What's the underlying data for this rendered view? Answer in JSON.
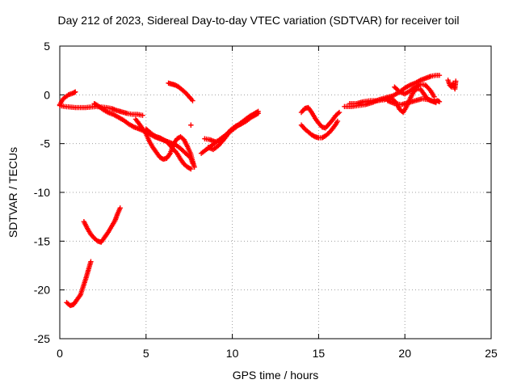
{
  "chart_data": {
    "type": "scatter",
    "title": "Day 212 of 2023, Sidereal Day-to-day VTEC variation (SDTVAR) for receiver toil",
    "xlabel": "GPS time / hours",
    "ylabel": "SDTVAR / TECUs",
    "xlim": [
      0,
      25
    ],
    "ylim": [
      -25,
      5
    ],
    "x_ticks": [
      "0",
      "5",
      "10",
      "15",
      "20",
      "25"
    ],
    "y_ticks": [
      "5",
      "0",
      "-5",
      "-10",
      "-15",
      "-20",
      "-25"
    ],
    "grid": true,
    "marker": "plus",
    "color": "#ff0000",
    "series": [
      {
        "points": [
          [
            0.0,
            -1.0
          ],
          [
            0.1,
            -0.7
          ],
          [
            0.2,
            -0.4
          ],
          [
            0.35,
            -0.2
          ],
          [
            0.5,
            0.0
          ],
          [
            0.65,
            0.1
          ],
          [
            0.8,
            0.2
          ],
          [
            0.9,
            0.3
          ]
        ]
      },
      {
        "points": [
          [
            0.0,
            -1.1
          ],
          [
            0.3,
            -1.2
          ],
          [
            0.6,
            -1.25
          ],
          [
            0.9,
            -1.3
          ],
          [
            1.2,
            -1.3
          ],
          [
            1.5,
            -1.3
          ],
          [
            1.8,
            -1.25
          ],
          [
            2.1,
            -1.2
          ],
          [
            2.4,
            -1.25
          ],
          [
            2.7,
            -1.3
          ],
          [
            3.0,
            -1.4
          ],
          [
            3.3,
            -1.6
          ],
          [
            3.6,
            -1.75
          ],
          [
            3.9,
            -1.9
          ],
          [
            4.2,
            -2.0
          ],
          [
            4.5,
            -2.0
          ],
          [
            4.8,
            -2.1
          ]
        ]
      },
      {
        "points": [
          [
            2.0,
            -0.9
          ],
          [
            2.2,
            -1.1
          ],
          [
            2.5,
            -1.5
          ],
          [
            2.8,
            -1.8
          ],
          [
            3.1,
            -2.0
          ],
          [
            3.4,
            -2.3
          ],
          [
            3.7,
            -2.6
          ],
          [
            4.0,
            -3.0
          ],
          [
            4.3,
            -3.3
          ],
          [
            4.6,
            -3.5
          ],
          [
            4.9,
            -3.7
          ],
          [
            5.2,
            -4.0
          ],
          [
            5.5,
            -4.3
          ],
          [
            5.8,
            -4.5
          ],
          [
            6.1,
            -4.7
          ],
          [
            6.4,
            -4.9
          ],
          [
            6.7,
            -5.1
          ],
          [
            7.0,
            -5.5
          ],
          [
            7.3,
            -6.0
          ],
          [
            7.6,
            -6.5
          ],
          [
            7.7,
            -7.0
          ]
        ]
      },
      {
        "points": [
          [
            4.4,
            -2.5
          ],
          [
            4.7,
            -3.2
          ],
          [
            5.0,
            -4.0
          ],
          [
            5.2,
            -4.8
          ],
          [
            5.4,
            -5.4
          ],
          [
            5.6,
            -5.9
          ],
          [
            5.8,
            -6.4
          ],
          [
            6.0,
            -6.6
          ],
          [
            6.2,
            -6.5
          ],
          [
            6.4,
            -6.0
          ],
          [
            6.6,
            -5.0
          ],
          [
            6.8,
            -4.5
          ],
          [
            7.0,
            -4.3
          ],
          [
            7.2,
            -4.6
          ],
          [
            7.4,
            -5.3
          ],
          [
            7.6,
            -6.1
          ],
          [
            7.7,
            -6.8
          ],
          [
            7.8,
            -7.4
          ]
        ]
      },
      {
        "points": [
          [
            5.0,
            -3.5
          ],
          [
            5.2,
            -3.8
          ],
          [
            5.4,
            -4.1
          ],
          [
            5.6,
            -4.3
          ],
          [
            5.8,
            -4.4
          ],
          [
            6.0,
            -4.6
          ],
          [
            6.2,
            -4.8
          ],
          [
            6.4,
            -5.2
          ],
          [
            6.6,
            -5.6
          ],
          [
            6.8,
            -6.0
          ],
          [
            7.0,
            -6.6
          ],
          [
            7.2,
            -7.1
          ],
          [
            7.4,
            -7.4
          ],
          [
            7.6,
            -7.6
          ]
        ]
      },
      {
        "points": [
          [
            6.3,
            1.2
          ],
          [
            6.5,
            1.1
          ],
          [
            6.7,
            1.0
          ],
          [
            6.9,
            0.8
          ],
          [
            7.1,
            0.5
          ],
          [
            7.3,
            0.2
          ],
          [
            7.5,
            -0.2
          ],
          [
            7.7,
            -0.6
          ]
        ]
      },
      {
        "points": [
          [
            7.6,
            -3.1
          ]
        ]
      },
      {
        "points": [
          [
            8.2,
            -6.0
          ],
          [
            8.5,
            -5.6
          ],
          [
            8.8,
            -5.2
          ],
          [
            9.1,
            -4.8
          ],
          [
            9.4,
            -4.4
          ],
          [
            9.7,
            -4.0
          ],
          [
            10.0,
            -3.6
          ],
          [
            10.3,
            -3.2
          ],
          [
            10.6,
            -2.8
          ],
          [
            10.9,
            -2.4
          ],
          [
            11.2,
            -2.1
          ],
          [
            11.5,
            -1.9
          ]
        ]
      },
      {
        "points": [
          [
            8.4,
            -4.5
          ],
          [
            8.7,
            -4.6
          ],
          [
            9.0,
            -4.8
          ],
          [
            9.3,
            -4.7
          ],
          [
            9.6,
            -4.2
          ],
          [
            9.9,
            -3.6
          ],
          [
            10.2,
            -3.2
          ],
          [
            10.5,
            -3.0
          ],
          [
            10.8,
            -2.7
          ],
          [
            11.1,
            -2.3
          ],
          [
            11.4,
            -2.0
          ]
        ]
      },
      {
        "points": [
          [
            8.6,
            -5.4
          ],
          [
            8.9,
            -5.6
          ],
          [
            9.2,
            -5.2
          ],
          [
            9.5,
            -4.6
          ],
          [
            9.8,
            -3.9
          ],
          [
            10.1,
            -3.4
          ],
          [
            10.4,
            -3.0
          ],
          [
            10.7,
            -2.6
          ],
          [
            11.0,
            -2.2
          ],
          [
            11.3,
            -1.9
          ],
          [
            11.5,
            -1.7
          ]
        ]
      },
      {
        "points": [
          [
            14.0,
            -1.8
          ],
          [
            14.2,
            -1.4
          ],
          [
            14.4,
            -1.3
          ],
          [
            14.6,
            -1.8
          ],
          [
            14.8,
            -2.4
          ],
          [
            15.0,
            -2.9
          ],
          [
            15.2,
            -3.3
          ],
          [
            15.4,
            -3.4
          ],
          [
            15.6,
            -3.0
          ],
          [
            15.8,
            -2.6
          ],
          [
            16.0,
            -2.1
          ],
          [
            16.2,
            -1.8
          ]
        ]
      },
      {
        "points": [
          [
            14.0,
            -3.1
          ],
          [
            14.2,
            -3.5
          ],
          [
            14.4,
            -3.8
          ],
          [
            14.6,
            -4.1
          ],
          [
            14.8,
            -4.3
          ],
          [
            15.0,
            -4.4
          ],
          [
            15.2,
            -4.4
          ],
          [
            15.4,
            -4.2
          ],
          [
            15.6,
            -3.9
          ],
          [
            15.8,
            -3.5
          ],
          [
            16.0,
            -3.0
          ],
          [
            16.1,
            -2.7
          ]
        ]
      },
      {
        "points": [
          [
            16.5,
            -1.2
          ],
          [
            16.9,
            -1.2
          ],
          [
            17.3,
            -1.1
          ],
          [
            17.7,
            -1.0
          ],
          [
            18.1,
            -0.8
          ],
          [
            18.5,
            -0.5
          ],
          [
            18.9,
            -0.3
          ],
          [
            19.3,
            -0.1
          ],
          [
            19.7,
            0.3
          ],
          [
            20.0,
            0.7
          ],
          [
            20.3,
            1.0
          ],
          [
            20.6,
            1.2
          ],
          [
            20.9,
            1.5
          ],
          [
            21.2,
            1.7
          ],
          [
            21.5,
            1.9
          ],
          [
            21.8,
            2.0
          ],
          [
            22.0,
            2.0
          ]
        ]
      },
      {
        "points": [
          [
            16.8,
            -0.9
          ],
          [
            17.2,
            -0.9
          ],
          [
            17.6,
            -0.7
          ],
          [
            18.0,
            -0.6
          ],
          [
            18.4,
            -0.6
          ],
          [
            18.8,
            -0.5
          ],
          [
            19.2,
            -0.3
          ],
          [
            19.5,
            -0.8
          ],
          [
            19.7,
            -1.5
          ],
          [
            19.9,
            -1.8
          ],
          [
            20.1,
            -1.2
          ],
          [
            20.3,
            -0.4
          ],
          [
            20.5,
            0.3
          ],
          [
            20.7,
            0.6
          ],
          [
            20.9,
            0.6
          ],
          [
            21.1,
            0.1
          ],
          [
            21.3,
            -0.4
          ],
          [
            21.5,
            -0.6
          ],
          [
            21.7,
            -0.7
          ],
          [
            21.9,
            -0.6
          ],
          [
            22.0,
            -0.7
          ]
        ]
      },
      {
        "points": [
          [
            19.0,
            -0.6
          ],
          [
            19.4,
            -0.9
          ],
          [
            19.8,
            -1.0
          ],
          [
            20.2,
            -0.8
          ],
          [
            20.6,
            -0.6
          ],
          [
            21.0,
            -0.4
          ],
          [
            21.4,
            -0.5
          ],
          [
            21.8,
            -0.8
          ]
        ]
      },
      {
        "points": [
          [
            19.4,
            0.8
          ],
          [
            19.7,
            0.3
          ],
          [
            20.0,
            0.1
          ],
          [
            20.3,
            0.4
          ],
          [
            20.6,
            0.8
          ],
          [
            20.9,
            1.1
          ],
          [
            21.2,
            1.0
          ],
          [
            21.5,
            0.4
          ],
          [
            21.7,
            -0.2
          ]
        ]
      },
      {
        "points": [
          [
            22.5,
            1.5
          ],
          [
            22.6,
            1.0
          ],
          [
            22.7,
            0.8
          ],
          [
            22.8,
            1.2
          ],
          [
            22.9,
            0.6
          ],
          [
            22.95,
            1.4
          ]
        ]
      },
      {
        "points": [
          [
            1.4,
            -13.0
          ],
          [
            1.6,
            -13.7
          ],
          [
            1.8,
            -14.3
          ],
          [
            2.0,
            -14.7
          ],
          [
            2.2,
            -15.0
          ],
          [
            2.4,
            -15.1
          ],
          [
            2.6,
            -14.6
          ],
          [
            2.8,
            -14.1
          ],
          [
            3.0,
            -13.5
          ],
          [
            3.2,
            -12.9
          ],
          [
            3.35,
            -12.2
          ],
          [
            3.5,
            -11.6
          ]
        ]
      },
      {
        "points": [
          [
            0.4,
            -21.3
          ],
          [
            0.6,
            -21.6
          ],
          [
            0.8,
            -21.5
          ],
          [
            1.0,
            -21.0
          ],
          [
            1.2,
            -20.5
          ],
          [
            1.35,
            -19.7
          ],
          [
            1.5,
            -18.9
          ],
          [
            1.6,
            -18.3
          ],
          [
            1.7,
            -17.7
          ],
          [
            1.8,
            -17.1
          ]
        ]
      }
    ]
  }
}
